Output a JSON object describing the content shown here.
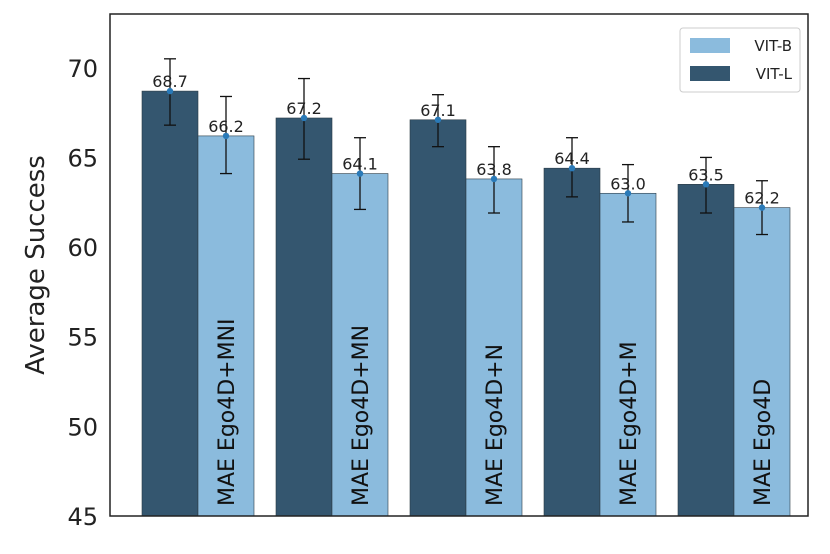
{
  "chart_data": {
    "type": "bar",
    "title": "",
    "xlabel": "",
    "ylabel": "Average Success",
    "ylim": [
      45,
      73
    ],
    "yticks": [
      45,
      50,
      55,
      60,
      65,
      70
    ],
    "grid": false,
    "legend_position": "top-right",
    "categories": [
      "MAE Ego4D+MNI",
      "MAE Ego4D+MN",
      "MAE Ego4D+N",
      "MAE Ego4D+M",
      "MAE Ego4D"
    ],
    "series": [
      {
        "name": "VIT-L",
        "color": "#34566f",
        "values": [
          68.7,
          67.2,
          67.1,
          64.4,
          63.5
        ],
        "value_labels": [
          "68.7",
          "67.2",
          "67.1",
          "64.4",
          "63.5"
        ],
        "error_low": [
          66.8,
          64.9,
          65.6,
          62.8,
          61.9
        ],
        "error_high": [
          70.5,
          69.4,
          68.5,
          66.1,
          65.0
        ]
      },
      {
        "name": "VIT-B",
        "color": "#8bbbdd",
        "values": [
          66.2,
          64.1,
          63.8,
          63.0,
          62.2
        ],
        "value_labels": [
          "66.2",
          "64.1",
          "63.8",
          "63.0",
          "62.2"
        ],
        "error_low": [
          64.1,
          62.1,
          61.9,
          61.4,
          60.7
        ],
        "error_high": [
          68.4,
          66.1,
          65.6,
          64.6,
          63.7
        ]
      }
    ],
    "legend": [
      "VIT-B",
      "VIT-L"
    ],
    "point_color": "#2a7ab8"
  }
}
